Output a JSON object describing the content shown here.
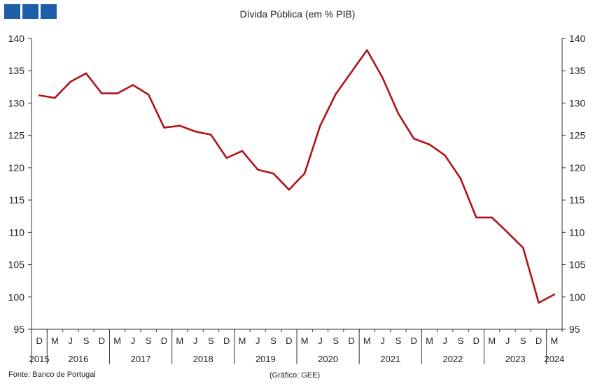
{
  "title": "Dívida Pública (em % PIB)",
  "source": "Fonte: Banco de Portugal",
  "credit": "(Gráfico: GEE)",
  "colors": {
    "line": "#b0121b",
    "axis": "#333333",
    "logo": "#1f5faa"
  },
  "chart_data": {
    "type": "line",
    "title": "Dívida Pública (em % PIB)",
    "ylim": [
      95,
      140
    ],
    "yticks": [
      95,
      100,
      105,
      110,
      115,
      120,
      125,
      130,
      135,
      140
    ],
    "grid": false,
    "secondary_y_axis": true,
    "x": [
      "D",
      "M",
      "J",
      "S",
      "D",
      "M",
      "J",
      "S",
      "D",
      "M",
      "J",
      "S",
      "D",
      "M",
      "J",
      "S",
      "D",
      "M",
      "J",
      "S",
      "D",
      "M",
      "J",
      "S",
      "D",
      "M",
      "J",
      "S",
      "D",
      "M",
      "J",
      "S",
      "D",
      "M"
    ],
    "year_labels": [
      "2015",
      "2016",
      "2017",
      "2018",
      "2019",
      "2020",
      "2021",
      "2022",
      "2023",
      "2024"
    ],
    "series": [
      {
        "values": [
          131.2,
          130.8,
          133.3,
          134.6,
          131.5,
          131.5,
          132.8,
          131.3,
          126.2,
          126.5,
          125.6,
          125.1,
          121.5,
          122.6,
          119.7,
          119.1,
          116.6,
          119.1,
          126.5,
          131.4,
          134.8,
          138.2,
          133.9,
          128.4,
          124.5,
          123.6,
          121.9,
          118.3,
          112.3,
          112.3,
          110.0,
          107.6,
          99.1,
          100.4
        ]
      }
    ]
  }
}
